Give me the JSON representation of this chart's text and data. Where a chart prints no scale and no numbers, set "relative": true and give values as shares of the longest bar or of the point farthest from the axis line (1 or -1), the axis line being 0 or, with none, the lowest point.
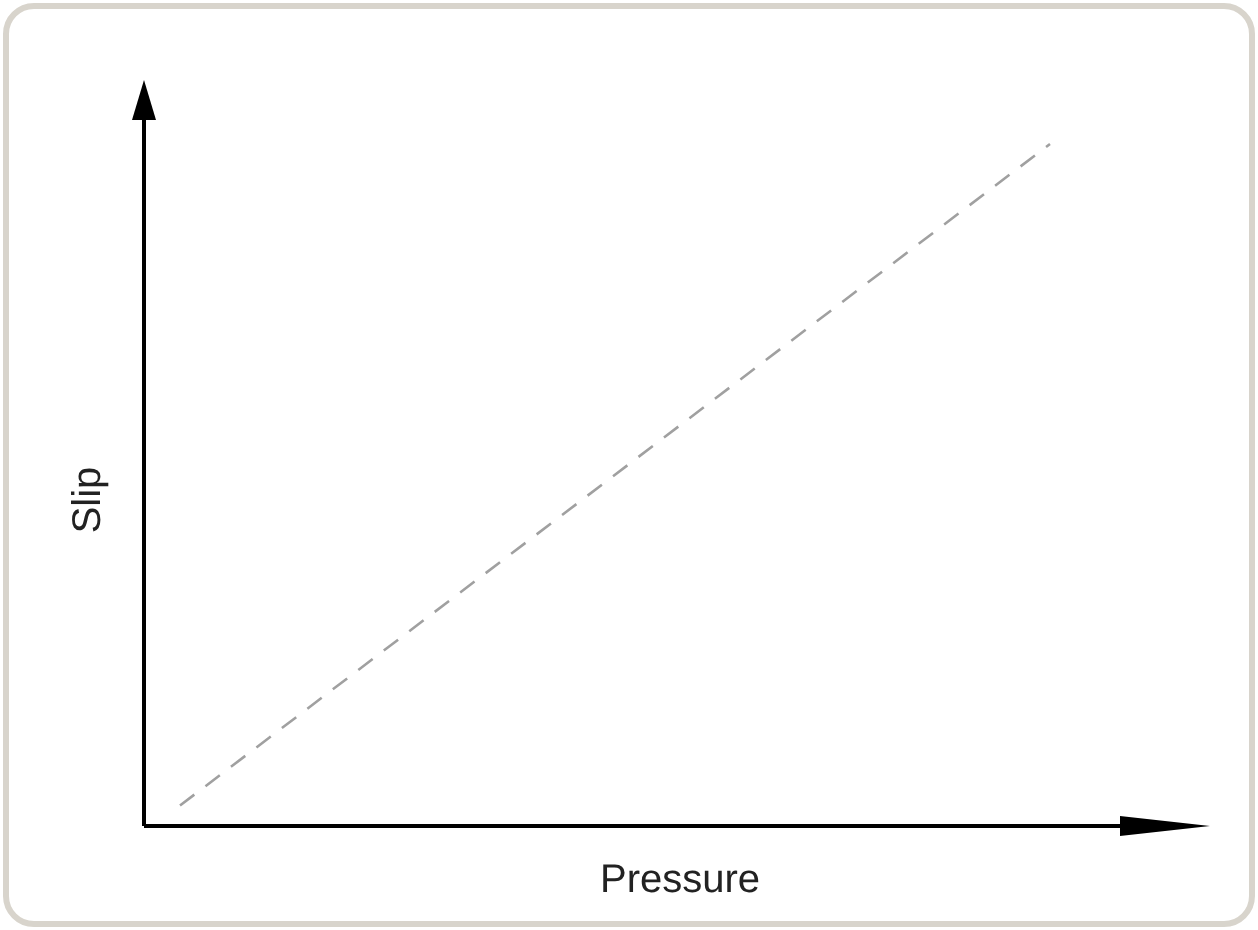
{
  "chart_data": {
    "type": "line",
    "relative": true,
    "xlabel": "Pressure",
    "ylabel": "Slip",
    "categories": [
      null,
      null
    ],
    "series": [
      {
        "color": "#a0a0a0",
        "values": [
          0.03,
          1
        ]
      }
    ],
    "line_style": "dashed",
    "marker": "none"
  }
}
